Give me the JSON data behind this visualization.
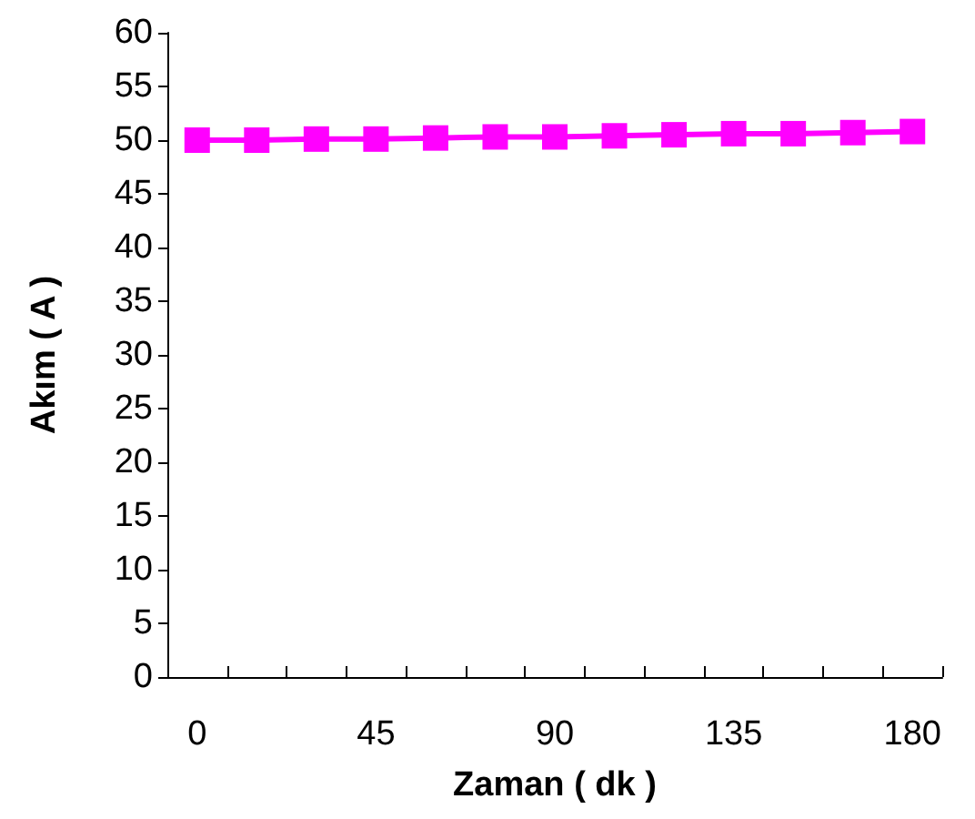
{
  "chart_data": {
    "type": "line",
    "xlabel": "Zaman ( dk )",
    "ylabel": "Akım ( A )",
    "categories": [
      "0",
      null,
      null,
      "45",
      null,
      null,
      "90",
      null,
      null,
      "135",
      null,
      null,
      "180"
    ],
    "series": [
      {
        "color": "#ff00ff",
        "values": [
          50.0,
          50.0,
          50.1,
          50.1,
          50.2,
          50.3,
          50.3,
          50.4,
          50.5,
          50.6,
          50.6,
          50.7,
          50.8
        ]
      }
    ],
    "ylim": [
      0,
      60
    ],
    "yticks": [
      0,
      5,
      10,
      15,
      20,
      25,
      30,
      35,
      40,
      45,
      50,
      55,
      60
    ],
    "grid": false,
    "marker": "square",
    "line_style": "solid"
  }
}
